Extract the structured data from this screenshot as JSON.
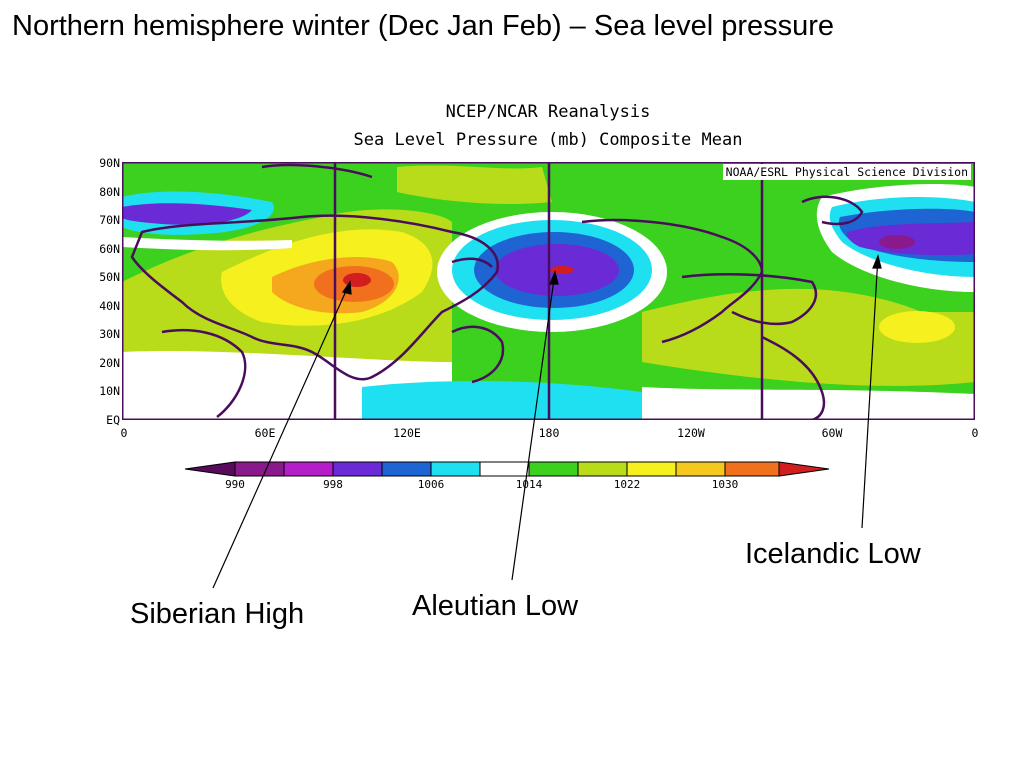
{
  "slide_title": "Northern hemisphere winter (Dec Jan Feb) – Sea level pressure",
  "map": {
    "title_line1": "NCEP/NCAR Reanalysis",
    "title_line2": "Sea Level Pressure (mb) Composite Mean",
    "credit": "NOAA/ESRL Physical Science Division",
    "lat_labels": [
      "90N",
      "80N",
      "70N",
      "60N",
      "50N",
      "40N",
      "30N",
      "20N",
      "10N",
      "EQ"
    ],
    "lon_labels": [
      "0",
      "60E",
      "120E",
      "180",
      "120W",
      "60W",
      "0"
    ],
    "colors": {
      "very_low": "#8a1a8c",
      "low_purple": "#6a2bd6",
      "blue": "#1e64d2",
      "cyan": "#1fe0f0",
      "white": "#ffffff",
      "green": "#3cd11e",
      "yellow_green": "#b9dc1a",
      "yellow": "#f5f01e",
      "orange": "#f5a81e",
      "dark_orange": "#f0701e",
      "red": "#d21e1e",
      "land": "#4a0d5c"
    }
  },
  "colorbar": {
    "labels": [
      "990",
      "998",
      "1006",
      "1014",
      "1022",
      "1030"
    ],
    "unit": "mb"
  },
  "callouts": {
    "siberian_high": "Siberian High",
    "aleutian_low": "Aleutian Low",
    "icelandic_low": "Icelandic Low"
  }
}
